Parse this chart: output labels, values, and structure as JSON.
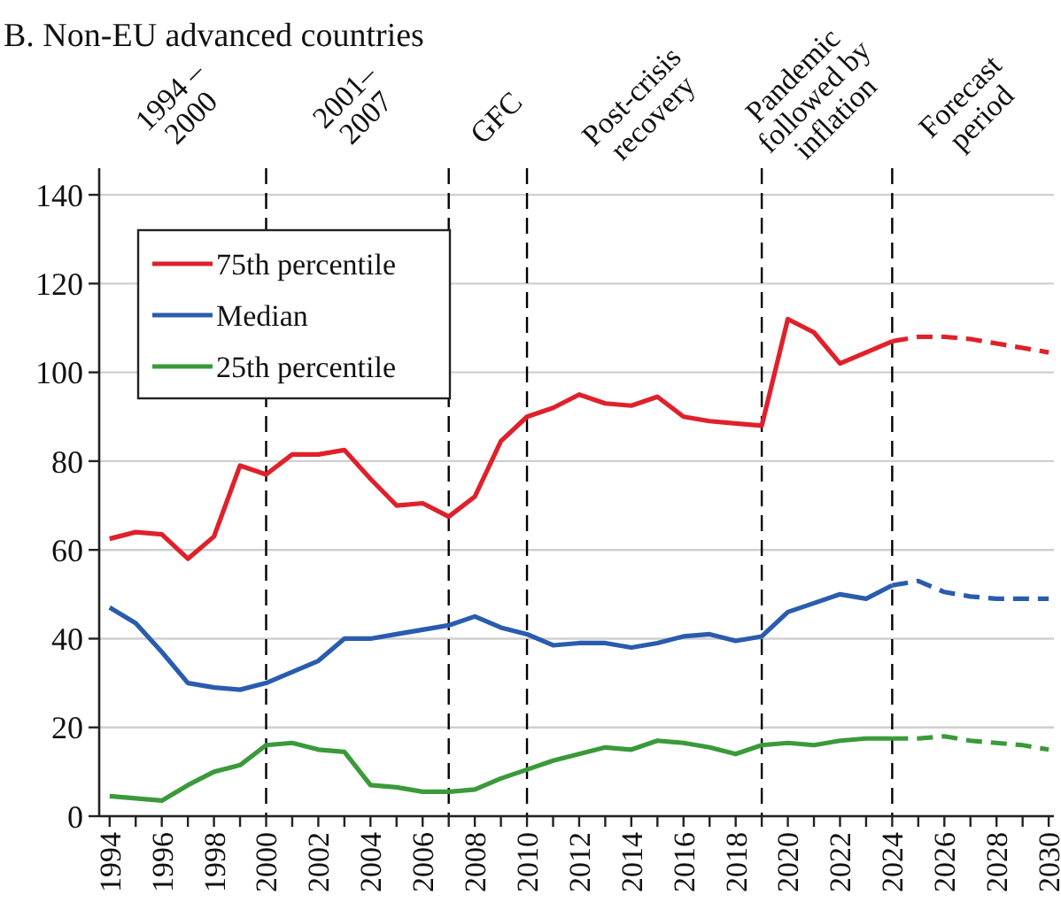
{
  "chart_data": {
    "type": "line",
    "title": "B. Non-EU advanced countries",
    "x": [
      1994,
      1995,
      1996,
      1997,
      1998,
      1999,
      2000,
      2001,
      2002,
      2003,
      2004,
      2005,
      2006,
      2007,
      2008,
      2009,
      2010,
      2011,
      2012,
      2013,
      2014,
      2015,
      2016,
      2017,
      2018,
      2019,
      2020,
      2021,
      2022,
      2023,
      2024
    ],
    "series": [
      {
        "name": "75th percentile",
        "color": "#e0202a",
        "values": [
          62.5,
          64,
          63.5,
          58,
          63,
          79,
          77,
          81.5,
          81.5,
          82.5,
          76,
          70,
          70.5,
          67.5,
          72,
          84.5,
          90,
          92,
          95,
          93,
          92.5,
          94.5,
          90,
          89,
          88.5,
          88,
          112,
          109,
          102,
          104.5,
          107
        ]
      },
      {
        "name": "Median",
        "color": "#2a5cae",
        "values": [
          47,
          43.5,
          37,
          30,
          29,
          28.5,
          30,
          32.5,
          35,
          40,
          40,
          41,
          42,
          43,
          45,
          42.5,
          41,
          38.5,
          39,
          39,
          38,
          39,
          40.5,
          41,
          39.5,
          40.5,
          46,
          48,
          50,
          49,
          52
        ]
      },
      {
        "name": "25th percentile",
        "color": "#3a9a3a",
        "values": [
          4.5,
          4,
          3.5,
          7,
          10,
          11.5,
          16,
          16.5,
          15,
          14.5,
          7,
          6.5,
          5.5,
          5.5,
          6,
          8.5,
          10.5,
          12.5,
          14,
          15.5,
          15,
          17,
          16.5,
          15.5,
          14,
          16,
          16.5,
          16,
          17,
          17.5,
          17.5
        ]
      },
      {
        "color": "#e0202a",
        "line_style": "dashed",
        "x": [
          2024,
          2025,
          2026,
          2027,
          2028,
          2029,
          2030
        ],
        "values": [
          107,
          108,
          108,
          107.5,
          106.5,
          105.5,
          104.5
        ]
      },
      {
        "color": "#2a5cae",
        "line_style": "dashed",
        "x": [
          2024,
          2025,
          2026,
          2027,
          2028,
          2029,
          2030
        ],
        "values": [
          52,
          53,
          50.5,
          49.5,
          49,
          49,
          49
        ]
      },
      {
        "color": "#3a9a3a",
        "line_style": "dashed",
        "x": [
          2024,
          2025,
          2026,
          2027,
          2028,
          2029,
          2030
        ],
        "values": [
          17.5,
          17.5,
          18,
          17,
          16.5,
          16,
          15
        ]
      }
    ],
    "xlim": [
      1993.6,
      2030.2
    ],
    "xticks": [
      1994,
      {
        "value": 1995,
        "label": null
      },
      1996,
      {
        "value": 1997,
        "label": null
      },
      1998,
      {
        "value": 1999,
        "label": null
      },
      2000,
      {
        "value": 2001,
        "label": null
      },
      2002,
      {
        "value": 2003,
        "label": null
      },
      2004,
      {
        "value": 2005,
        "label": null
      },
      2006,
      {
        "value": 2007,
        "label": null
      },
      2008,
      {
        "value": 2009,
        "label": null
      },
      2010,
      {
        "value": 2011,
        "label": null
      },
      2012,
      {
        "value": 2013,
        "label": null
      },
      2014,
      {
        "value": 2015,
        "label": null
      },
      2016,
      {
        "value": 2017,
        "label": null
      },
      2018,
      {
        "value": 2019,
        "label": null
      },
      2020,
      {
        "value": 2021,
        "label": null
      },
      2022,
      {
        "value": 2023,
        "label": null
      },
      2024,
      {
        "value": 2025,
        "label": null
      },
      2026,
      {
        "value": 2027,
        "label": null
      },
      2028,
      {
        "value": 2029,
        "label": null
      },
      2030
    ],
    "ylim": [
      0,
      146
    ],
    "yticks": [
      0,
      20,
      40,
      60,
      80,
      100,
      120,
      140
    ],
    "grid": "y",
    "legend": "top left",
    "line_style": "solid",
    "marker": "none",
    "ref_lines": [
      {
        "axis": "x",
        "value": 2000,
        "color": "#000000",
        "line_style": "dashed"
      },
      {
        "axis": "x",
        "value": 2007,
        "color": "#000000",
        "line_style": "dashed"
      },
      {
        "axis": "x",
        "value": 2010,
        "color": "#000000",
        "line_style": "dashed"
      },
      {
        "axis": "x",
        "value": 2019,
        "color": "#000000",
        "line_style": "dashed"
      },
      {
        "axis": "x",
        "value": 2024,
        "color": "#000000",
        "line_style": "dashed"
      }
    ],
    "annotations": [
      "1994 –\n2000",
      "2001–\n2007",
      "GFC",
      "Post-crisis\nrecovery",
      "Pandemic\nfollowed by\ninflation",
      "Forecast\nperiod"
    ]
  }
}
